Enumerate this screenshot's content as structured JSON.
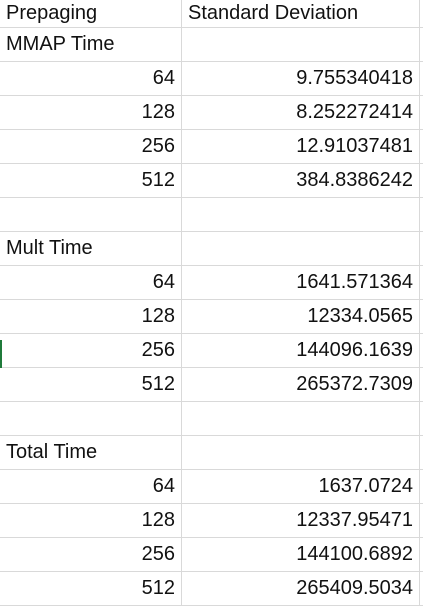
{
  "header": {
    "col_a": "Prepaging",
    "col_b": "Standard Deviation"
  },
  "rows": [
    {
      "a": "MMAP Time",
      "b": "",
      "type": "label"
    },
    {
      "a": "64",
      "b": "9.755340418",
      "type": "value"
    },
    {
      "a": "128",
      "b": "8.252272414",
      "type": "value"
    },
    {
      "a": "256",
      "b": "12.91037481",
      "type": "value"
    },
    {
      "a": "512",
      "b": "384.8386242",
      "type": "value"
    },
    {
      "a": "",
      "b": "",
      "type": "blank"
    },
    {
      "a": "Mult Time",
      "b": "",
      "type": "label"
    },
    {
      "a": "64",
      "b": "1641.571364",
      "type": "value"
    },
    {
      "a": "128",
      "b": "12334.0565",
      "type": "value"
    },
    {
      "a": "256",
      "b": "144096.1639",
      "type": "value"
    },
    {
      "a": "512",
      "b": "265372.7309",
      "type": "value"
    },
    {
      "a": "",
      "b": "",
      "type": "blank"
    },
    {
      "a": "Total Time",
      "b": "",
      "type": "label"
    },
    {
      "a": "64",
      "b": "1637.0724",
      "type": "value"
    },
    {
      "a": "128",
      "b": "12337.95471",
      "type": "value"
    },
    {
      "a": "256",
      "b": "144100.6892",
      "type": "value"
    },
    {
      "a": "512",
      "b": "265409.5034",
      "type": "value"
    }
  ]
}
